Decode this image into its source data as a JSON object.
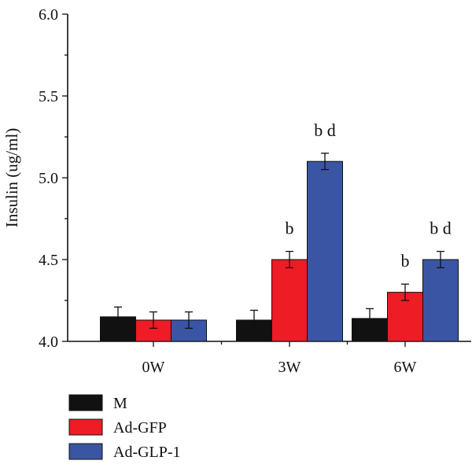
{
  "chart_data": {
    "type": "bar",
    "title": "",
    "xlabel": "",
    "ylabel": "Insulin (ug/ml)",
    "ylim": [
      4.0,
      6.0
    ],
    "yticks": [
      "4.0",
      "4.5",
      "5.0",
      "5.5",
      "6.0"
    ],
    "ytick_values": [
      4.0,
      4.5,
      5.0,
      5.5,
      6.0
    ],
    "categories": [
      "0W",
      "3W",
      "6W"
    ],
    "grid": false,
    "legend_position": "bottom-left",
    "series": [
      {
        "name": "M",
        "color": "#111111",
        "values": [
          4.15,
          4.13,
          4.14
        ],
        "errors": [
          0.06,
          0.06,
          0.06
        ],
        "annotations": [
          "",
          "",
          ""
        ]
      },
      {
        "name": "Ad-GFP",
        "color": "#ee1c25",
        "values": [
          4.13,
          4.5,
          4.3
        ],
        "errors": [
          0.05,
          0.05,
          0.05
        ],
        "annotations": [
          "",
          "b",
          "b"
        ]
      },
      {
        "name": "Ad-GLP-1",
        "color": "#3a55a4",
        "values": [
          4.13,
          5.1,
          4.5
        ],
        "errors": [
          0.05,
          0.05,
          0.05
        ],
        "annotations": [
          "",
          "b d",
          "b d"
        ]
      }
    ]
  }
}
